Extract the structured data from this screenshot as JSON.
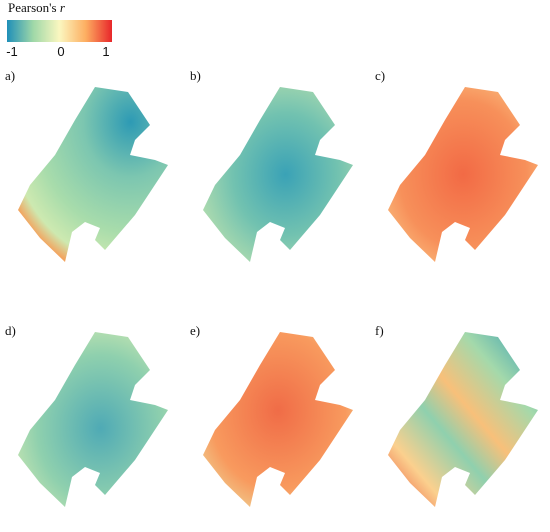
{
  "colorbar": {
    "title": "Pearson's",
    "title_var": "r",
    "ticks": [
      "-1",
      "0",
      "1"
    ]
  },
  "panels": [
    {
      "label": "a)"
    },
    {
      "label": "b)"
    },
    {
      "label": "c)"
    },
    {
      "label": "d)"
    },
    {
      "label": "e)"
    },
    {
      "label": "f)"
    }
  ]
}
